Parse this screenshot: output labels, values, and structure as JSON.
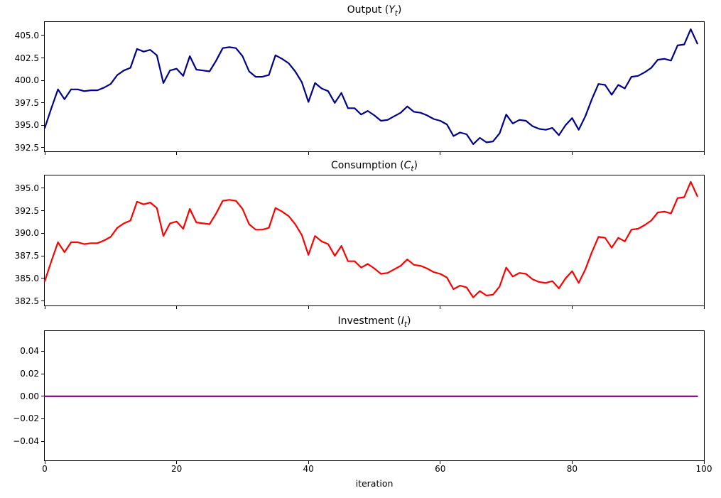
{
  "figure": {
    "background_color": "#ffffff",
    "xlabel": "iteration",
    "xlim": [
      0,
      100
    ],
    "x_tick_values": [
      0,
      20,
      40,
      60,
      80,
      100
    ],
    "x_tick_labels": [
      "0",
      "20",
      "40",
      "60",
      "80",
      "100"
    ],
    "grid": false,
    "legend": "none"
  },
  "chart_data": [
    {
      "type": "line",
      "name": "output",
      "title": {
        "prefix": "Output (",
        "variable": "Y",
        "subscript": "t",
        "suffix": ")"
      },
      "line_color": "#00008b",
      "xlim": [
        0,
        100
      ],
      "ylim": [
        392.1,
        406.5
      ],
      "y_tick_values": [
        392.5,
        395.0,
        397.5,
        400.0,
        402.5,
        405.0
      ],
      "y_tick_labels": [
        "392.5",
        "395.0",
        "397.5",
        "400.0",
        "402.5",
        "405.0"
      ],
      "x_start": 0,
      "x_step": 1,
      "values": [
        394.7,
        396.9,
        399.0,
        397.9,
        399.0,
        399.0,
        398.8,
        398.9,
        398.9,
        399.2,
        399.6,
        400.6,
        401.1,
        401.4,
        403.5,
        403.2,
        403.4,
        402.8,
        399.7,
        401.1,
        401.3,
        400.5,
        402.7,
        401.2,
        401.1,
        401.0,
        402.2,
        403.6,
        403.7,
        403.6,
        402.7,
        401.0,
        400.4,
        400.4,
        400.6,
        402.8,
        402.4,
        401.9,
        401.0,
        399.8,
        397.6,
        399.7,
        399.1,
        398.8,
        397.5,
        398.6,
        396.9,
        396.9,
        396.2,
        396.6,
        396.1,
        395.5,
        395.6,
        396.0,
        396.4,
        397.1,
        396.5,
        396.4,
        396.1,
        395.7,
        395.5,
        395.1,
        393.8,
        394.2,
        394.0,
        392.9,
        393.6,
        393.1,
        393.2,
        394.1,
        396.2,
        395.2,
        395.6,
        395.5,
        394.9,
        394.6,
        394.5,
        394.7,
        393.9,
        395.0,
        395.8,
        394.5,
        396.0,
        397.9,
        399.6,
        399.5,
        398.4,
        399.5,
        399.1,
        400.4,
        400.5,
        400.9,
        401.4,
        402.3,
        402.4,
        402.2,
        403.9,
        404.0,
        405.7,
        404.1
      ]
    },
    {
      "type": "line",
      "name": "consumption",
      "title": {
        "prefix": "Consumption (",
        "variable": "C",
        "subscript": "t",
        "suffix": ")"
      },
      "line_color": "#ff0000",
      "xlim": [
        0,
        100
      ],
      "ylim": [
        382.0,
        396.4
      ],
      "y_tick_values": [
        382.5,
        385.0,
        387.5,
        390.0,
        392.5,
        395.0
      ],
      "y_tick_labels": [
        "382.5",
        "385.0",
        "387.5",
        "390.0",
        "392.5",
        "395.0"
      ],
      "x_start": 0,
      "x_step": 1,
      "values": [
        384.7,
        386.9,
        389.0,
        387.9,
        389.0,
        389.0,
        388.8,
        388.9,
        388.9,
        389.2,
        389.6,
        390.6,
        391.1,
        391.4,
        393.5,
        393.2,
        393.4,
        392.8,
        389.7,
        391.1,
        391.3,
        390.5,
        392.7,
        391.2,
        391.1,
        391.0,
        392.2,
        393.6,
        393.7,
        393.6,
        392.7,
        391.0,
        390.4,
        390.4,
        390.6,
        392.8,
        392.4,
        391.9,
        391.0,
        389.8,
        387.6,
        389.7,
        389.1,
        388.8,
        387.5,
        388.6,
        386.9,
        386.9,
        386.2,
        386.6,
        386.1,
        385.5,
        385.6,
        386.0,
        386.4,
        387.1,
        386.5,
        386.4,
        386.1,
        385.7,
        385.5,
        385.1,
        383.8,
        384.2,
        384.0,
        382.9,
        383.6,
        383.1,
        383.2,
        384.1,
        386.2,
        385.2,
        385.6,
        385.5,
        384.9,
        384.6,
        384.5,
        384.7,
        383.9,
        385.0,
        385.8,
        384.5,
        386.0,
        387.9,
        389.6,
        389.5,
        388.4,
        389.5,
        389.1,
        390.4,
        390.5,
        390.9,
        391.4,
        392.3,
        392.4,
        392.2,
        393.9,
        394.0,
        395.7,
        394.1
      ]
    },
    {
      "type": "line",
      "name": "investment",
      "title": {
        "prefix": "Investment (",
        "variable": "I",
        "subscript": "t",
        "suffix": ")"
      },
      "line_color": "#800080",
      "xlim": [
        0,
        100
      ],
      "ylim": [
        -0.057,
        0.058
      ],
      "y_tick_values": [
        -0.04,
        -0.02,
        0.0,
        0.02,
        0.04
      ],
      "y_tick_labels": [
        "−0.04",
        "−0.02",
        "0.00",
        "0.02",
        "0.04"
      ],
      "x_start": 0,
      "x_step": 1,
      "constant_value": 0.0,
      "n_points": 100
    }
  ]
}
